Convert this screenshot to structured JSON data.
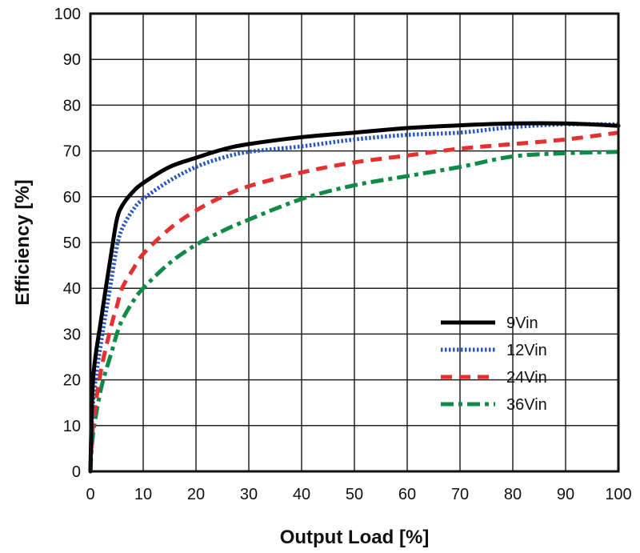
{
  "chart_data": {
    "type": "line",
    "title": "",
    "xlabel": "Output Load [%]",
    "ylabel": "Efficiency [%]",
    "xlim": [
      0,
      100
    ],
    "ylim": [
      0,
      100
    ],
    "x_ticks": [
      0,
      10,
      20,
      30,
      40,
      50,
      60,
      70,
      80,
      90,
      100
    ],
    "y_ticks": [
      0,
      10,
      20,
      30,
      40,
      50,
      60,
      70,
      80,
      90,
      100
    ],
    "grid": true,
    "legend_position": "bottom-right",
    "series": [
      {
        "name": "9Vin",
        "color": "#000000",
        "line_style": "solid",
        "points": [
          [
            0,
            0
          ],
          [
            0.5,
            20
          ],
          [
            2,
            33
          ],
          [
            4,
            48
          ],
          [
            5,
            55
          ],
          [
            6,
            58
          ],
          [
            8,
            61
          ],
          [
            10,
            63
          ],
          [
            15,
            66.5
          ],
          [
            20,
            68.5
          ],
          [
            25,
            70.3
          ],
          [
            30,
            71.5
          ],
          [
            40,
            73
          ],
          [
            50,
            74
          ],
          [
            60,
            75
          ],
          [
            70,
            75.6
          ],
          [
            80,
            76
          ],
          [
            90,
            76
          ],
          [
            100,
            75.5
          ]
        ]
      },
      {
        "name": "12Vin",
        "color": "#2a56b8",
        "line_style": "dotted",
        "points": [
          [
            0,
            0
          ],
          [
            0.5,
            15
          ],
          [
            2,
            28
          ],
          [
            4,
            42
          ],
          [
            5,
            49
          ],
          [
            6,
            53
          ],
          [
            8,
            57
          ],
          [
            10,
            59.5
          ],
          [
            15,
            63.5
          ],
          [
            20,
            66.5
          ],
          [
            25,
            68.5
          ],
          [
            30,
            69.8
          ],
          [
            40,
            71
          ],
          [
            50,
            72.5
          ],
          [
            60,
            73.5
          ],
          [
            70,
            74
          ],
          [
            80,
            75.2
          ],
          [
            90,
            75.8
          ],
          [
            100,
            75.8
          ]
        ]
      },
      {
        "name": "24Vin",
        "color": "#e53030",
        "line_style": "dashed",
        "points": [
          [
            0,
            0
          ],
          [
            0.5,
            10
          ],
          [
            2,
            22
          ],
          [
            4,
            32
          ],
          [
            5,
            36
          ],
          [
            6,
            40
          ],
          [
            8,
            44
          ],
          [
            10,
            47.5
          ],
          [
            15,
            53
          ],
          [
            20,
            57
          ],
          [
            25,
            60
          ],
          [
            30,
            62.3
          ],
          [
            40,
            65.3
          ],
          [
            50,
            67.5
          ],
          [
            60,
            69
          ],
          [
            70,
            70.5
          ],
          [
            80,
            71.5
          ],
          [
            90,
            72.5
          ],
          [
            100,
            74
          ]
        ]
      },
      {
        "name": "36Vin",
        "color": "#0f8a47",
        "line_style": "dashdot",
        "points": [
          [
            0,
            0
          ],
          [
            0.5,
            8
          ],
          [
            2,
            18
          ],
          [
            4,
            26
          ],
          [
            5,
            30
          ],
          [
            6,
            33
          ],
          [
            8,
            37
          ],
          [
            10,
            40
          ],
          [
            15,
            45.5
          ],
          [
            20,
            49.5
          ],
          [
            25,
            52.5
          ],
          [
            30,
            55
          ],
          [
            40,
            59.5
          ],
          [
            50,
            62.5
          ],
          [
            60,
            64.5
          ],
          [
            70,
            66.5
          ],
          [
            80,
            68.8
          ],
          [
            90,
            69.5
          ],
          [
            100,
            69.8
          ]
        ]
      }
    ]
  }
}
